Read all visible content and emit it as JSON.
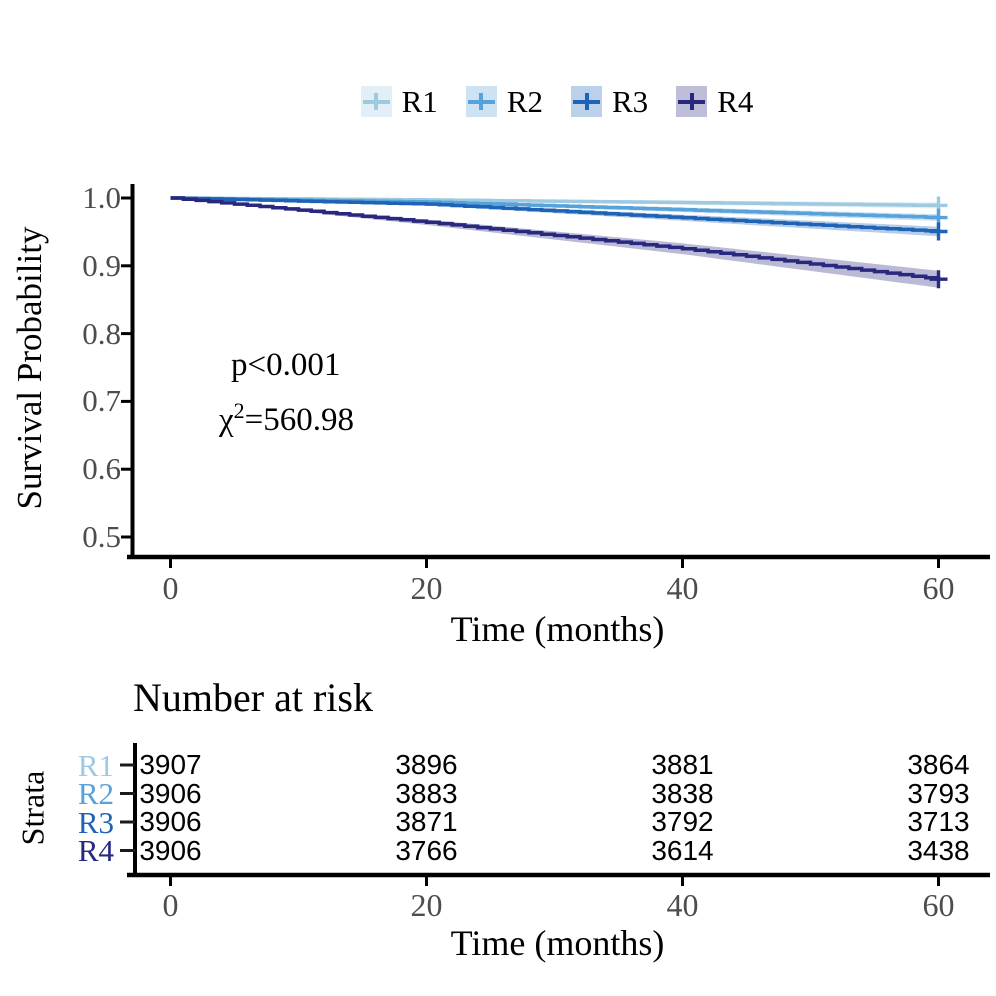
{
  "chart_data": {
    "type": "line",
    "subtype": "kaplan-meier-survival",
    "title": "",
    "xlabel": "Time (months)",
    "ylabel": "Survival Probability",
    "legend_position": "top",
    "grid": false,
    "xlim": [
      0,
      62
    ],
    "ylim": [
      0.5,
      1.0
    ],
    "x_ticks": [
      0,
      20,
      40,
      60
    ],
    "y_tick_labels": [
      "1.0",
      "0.9",
      "0.8",
      "0.7",
      "0.6",
      "0.5"
    ],
    "x": [
      0,
      20,
      40,
      60
    ],
    "series": [
      {
        "name": "R1",
        "color": "#9ECAE1",
        "values": [
          1.0,
          0.9972,
          0.9933,
          0.989
        ],
        "ci_halfwidth": [
          0,
          0.0015,
          0.003,
          0.0045
        ],
        "censor_at_end": true
      },
      {
        "name": "R2",
        "color": "#58A2DB",
        "values": [
          1.0,
          0.9941,
          0.9826,
          0.9711
        ],
        "ci_halfwidth": [
          0,
          0.002,
          0.0035,
          0.005
        ],
        "censor_at_end": true
      },
      {
        "name": "R3",
        "color": "#1E63B5",
        "values": [
          1.0,
          0.991,
          0.9708,
          0.9506
        ],
        "ci_halfwidth": [
          0,
          0.002,
          0.0045,
          0.007
        ],
        "censor_at_end": true
      },
      {
        "name": "R4",
        "color": "#28287F",
        "values": [
          1.0,
          0.9642,
          0.9252,
          0.8802
        ],
        "ci_halfwidth": [
          0,
          0.004,
          0.008,
          0.0125
        ],
        "censor_at_end": true
      }
    ],
    "annotations": {
      "p_value": "p<0.001",
      "chi_symbol": "χ",
      "chi_exponent": "2",
      "chi_value": "=560.98"
    },
    "risk_table": {
      "title": "Number at risk",
      "axis_label": "Strata",
      "xlabel": "Time (months)",
      "x_ticks": [
        0,
        20,
        40,
        60
      ],
      "rows": [
        {
          "name": "R1",
          "color": "#9ECAE1",
          "counts": [
            "3907",
            "3896",
            "3881",
            "3864"
          ]
        },
        {
          "name": "R2",
          "color": "#58A2DB",
          "counts": [
            "3906",
            "3883",
            "3838",
            "3793"
          ]
        },
        {
          "name": "R3",
          "color": "#1E63B5",
          "counts": [
            "3906",
            "3871",
            "3792",
            "3713"
          ]
        },
        {
          "name": "R4",
          "color": "#28287F",
          "counts": [
            "3906",
            "3766",
            "3614",
            "3438"
          ]
        }
      ]
    }
  }
}
